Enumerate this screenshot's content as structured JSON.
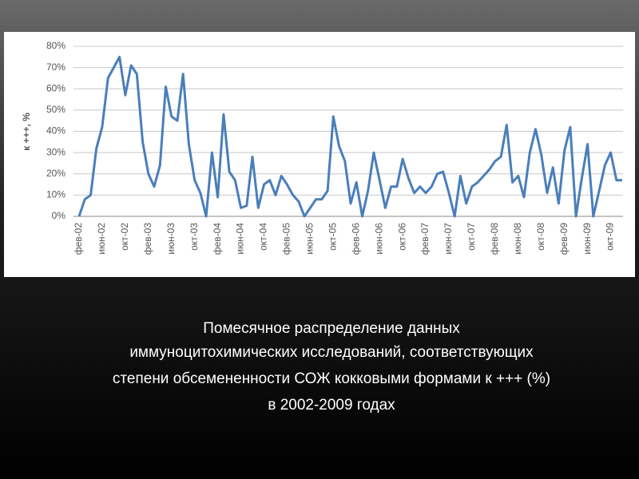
{
  "chart_data": {
    "type": "line",
    "ylabel": "к +++, %",
    "caption_lines": [
      "Помесячное распределение данных",
      "иммуноцитохимических исследований, соответствующих",
      "степени обсемененности СОЖ кокковыми формами к +++ (%)",
      "в 2002-2009 годах"
    ],
    "categories": [
      "фев-02",
      null,
      null,
      null,
      "июн-02",
      null,
      null,
      null,
      "окт-02",
      null,
      null,
      null,
      "фев-03",
      null,
      null,
      null,
      "июн-03",
      null,
      null,
      null,
      "окт-03",
      null,
      null,
      null,
      "фев-04",
      null,
      null,
      null,
      "июн-04",
      null,
      null,
      null,
      "окт-04",
      null,
      null,
      null,
      "фев-05",
      null,
      null,
      null,
      "июн-05",
      null,
      null,
      null,
      "окт-05",
      null,
      null,
      null,
      "фев-06",
      null,
      null,
      null,
      "июн-06",
      null,
      null,
      null,
      "окт-06",
      null,
      null,
      null,
      "фев-07",
      null,
      null,
      null,
      "июн-07",
      null,
      null,
      null,
      "окт-07",
      null,
      null,
      null,
      "фев-08",
      null,
      null,
      null,
      "июн-08",
      null,
      null,
      null,
      "окт-08",
      null,
      null,
      null,
      "фев-09",
      null,
      null,
      null,
      "июн-09",
      null,
      null,
      null,
      "окт-09",
      null,
      null
    ],
    "series": [
      {
        "name": "к +++",
        "color": "#4a7ebb",
        "values": [
          0,
          8,
          10,
          32,
          42,
          65,
          70,
          75,
          57,
          71,
          67,
          35,
          20,
          14,
          24,
          61,
          47,
          45,
          67,
          34,
          17,
          11,
          0,
          30,
          9,
          48,
          21,
          17,
          4,
          5,
          28,
          4,
          15,
          17,
          10,
          19,
          15,
          10,
          7,
          0,
          4,
          8,
          8,
          12,
          47,
          33,
          26,
          6,
          16,
          0,
          12,
          30,
          17,
          4,
          14,
          14,
          27,
          18,
          11,
          14,
          11,
          14,
          20,
          21,
          11,
          0,
          19,
          6,
          14,
          16,
          19,
          22,
          26,
          28,
          43,
          16,
          19,
          9,
          30,
          41,
          29,
          11,
          23,
          6,
          31,
          42,
          0,
          18,
          34,
          0,
          12,
          24,
          30,
          17,
          17
        ]
      }
    ],
    "ylim": [
      0,
      80
    ],
    "yticks": [
      {
        "value": 0,
        "label": "0%"
      },
      {
        "value": 10,
        "label": "10%"
      },
      {
        "value": 20,
        "label": "20%"
      },
      {
        "value": 30,
        "label": "30%"
      },
      {
        "value": 40,
        "label": "40%"
      },
      {
        "value": 50,
        "label": "50%"
      },
      {
        "value": 60,
        "label": "60%"
      },
      {
        "value": 70,
        "label": "70%"
      },
      {
        "value": 80,
        "label": "80%"
      }
    ],
    "grid": true
  }
}
